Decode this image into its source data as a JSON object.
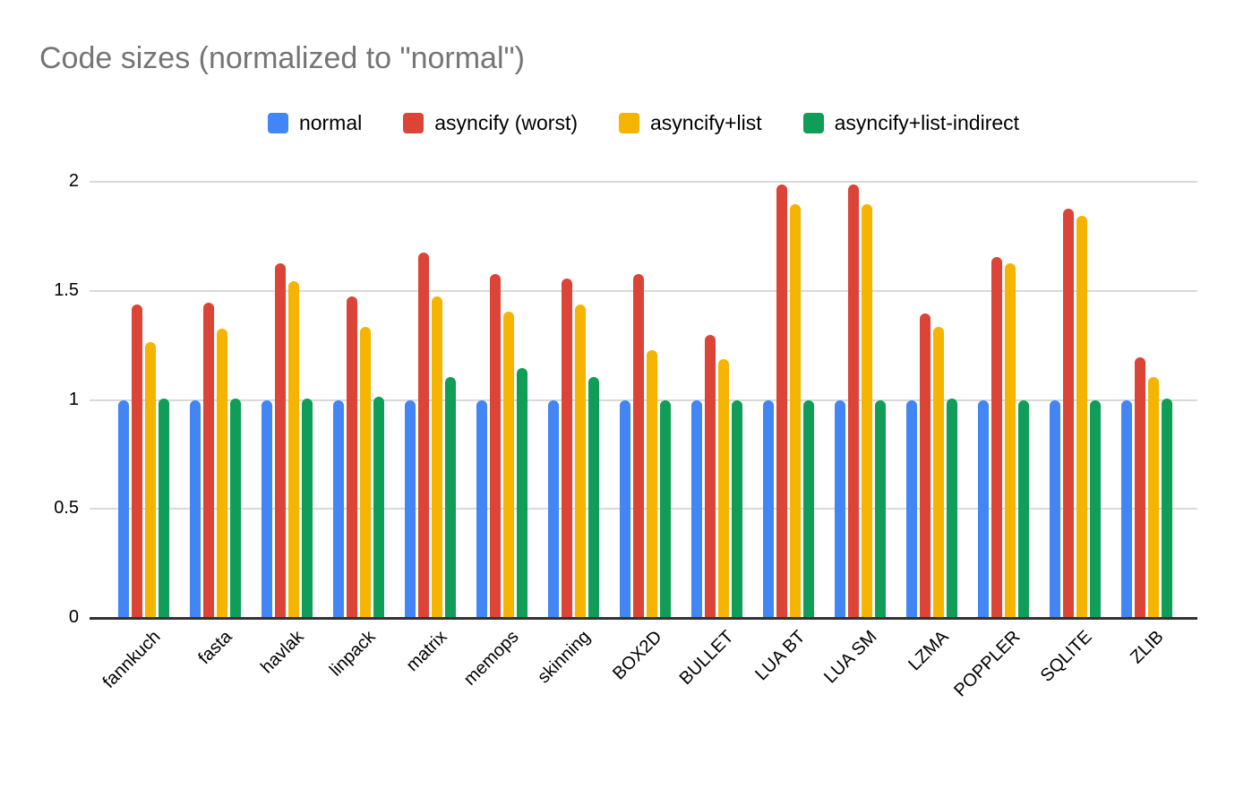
{
  "chart_data": {
    "type": "bar",
    "title": "Code sizes (normalized to \"normal\")",
    "categories": [
      "fannkuch",
      "fasta",
      "havlak",
      "linpack",
      "matrix",
      "memops",
      "skinning",
      "BOX2D",
      "BULLET",
      "LUA BT",
      "LUA SM",
      "LZMA",
      "POPPLER",
      "SQLITE",
      "ZLIB"
    ],
    "series": [
      {
        "name": "normal",
        "color": "#4285F4",
        "values": [
          1.0,
          1.0,
          1.0,
          1.0,
          1.0,
          1.0,
          1.0,
          1.0,
          1.0,
          1.0,
          1.0,
          1.0,
          1.0,
          1.0,
          1.0
        ]
      },
      {
        "name": "asyncify (worst)",
        "color": "#DB4437",
        "values": [
          1.44,
          1.45,
          1.63,
          1.48,
          1.68,
          1.58,
          1.56,
          1.58,
          1.3,
          1.99,
          1.99,
          1.4,
          1.66,
          1.88,
          1.2
        ]
      },
      {
        "name": "asyncify+list",
        "color": "#F4B400",
        "values": [
          1.27,
          1.33,
          1.55,
          1.34,
          1.48,
          1.41,
          1.44,
          1.23,
          1.19,
          1.9,
          1.9,
          1.34,
          1.63,
          1.85,
          1.11
        ]
      },
      {
        "name": "asyncify+list-indirect",
        "color": "#0F9D58",
        "values": [
          1.01,
          1.01,
          1.01,
          1.02,
          1.11,
          1.15,
          1.11,
          1.0,
          1.0,
          1.0,
          1.0,
          1.01,
          1.0,
          1.0,
          1.01
        ]
      }
    ],
    "xlabel": "",
    "ylabel": "",
    "ylim": [
      0,
      2
    ],
    "yticks": [
      0,
      0.5,
      1,
      1.5,
      2
    ],
    "grid": true,
    "legend_position": "top",
    "x_tick_rotation_deg": 45
  },
  "colors": {
    "title_text": "#757575",
    "axis_text": "#000000",
    "gridline": "#d9d9d9",
    "axis_line": "#333333",
    "background": "#ffffff"
  }
}
